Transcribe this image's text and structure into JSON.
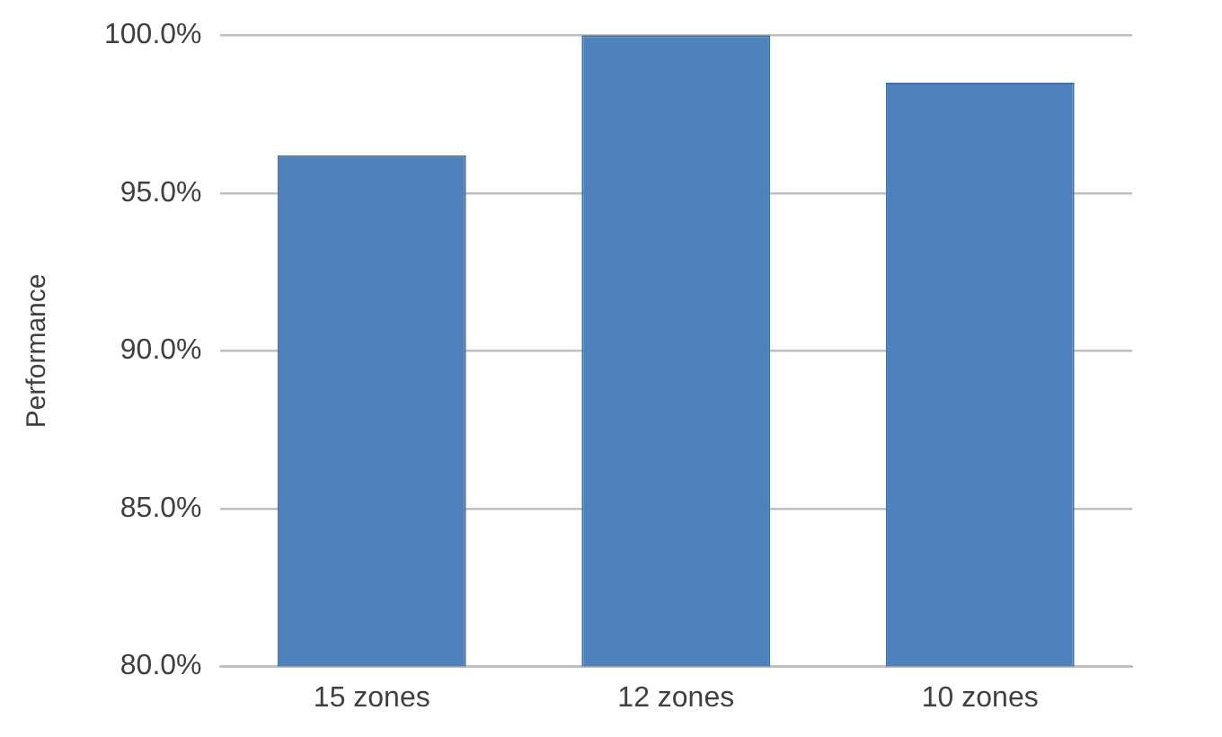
{
  "chart_data": {
    "type": "bar",
    "ylabel": "Performance",
    "categories": [
      "15 zones",
      "12 zones",
      "10 zones"
    ],
    "values": [
      96.2,
      100,
      98.5
    ],
    "color": "#4f81bd",
    "ylim": [
      80,
      100
    ],
    "yticks": [
      {
        "value": 80,
        "label": "80.0%"
      },
      {
        "value": 85,
        "label": "85.0%"
      },
      {
        "value": 90,
        "label": "90.0%"
      },
      {
        "value": 95,
        "label": "95.0%"
      },
      {
        "value": 100,
        "label": "100.0%"
      }
    ],
    "grid": "y"
  }
}
